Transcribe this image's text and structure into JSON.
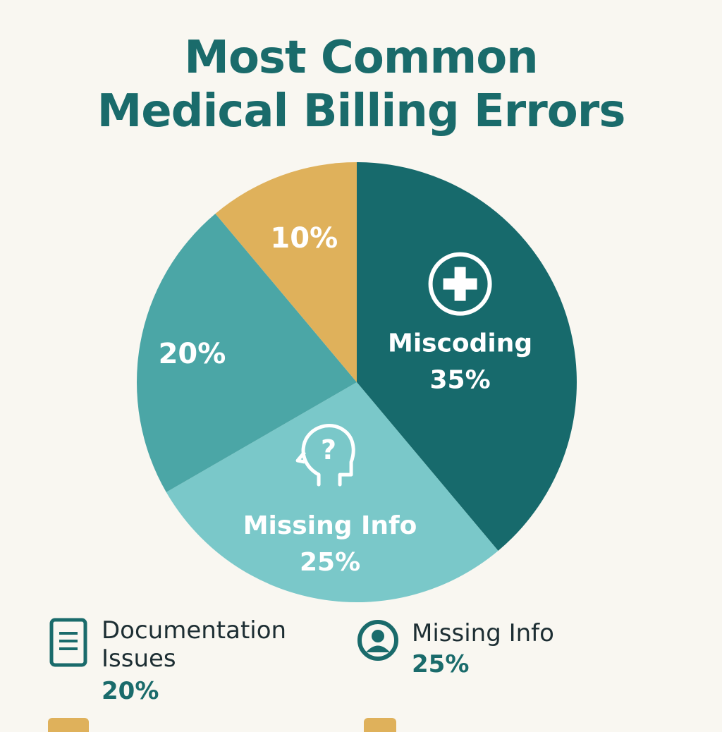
{
  "title_lines": [
    "Most Common",
    "Medical Billing Errors"
  ],
  "colors": {
    "background": "#f9f7f1",
    "title": "#1a6b6b",
    "miscoding": "#176a6c",
    "missing_info": "#7ac8c9",
    "documentation": "#4ba6a6",
    "other": "#dfb15b"
  },
  "chart_data": {
    "type": "pie",
    "title": "Most Common Medical Billing Errors",
    "slices": [
      {
        "label": "Miscoding",
        "value": 35,
        "display": "35%",
        "color": "#176a6c",
        "icon": "medical-cross-icon"
      },
      {
        "label": "Missing Info",
        "value": 25,
        "display": "25%",
        "color": "#7ac8c9",
        "icon": "head-question-icon"
      },
      {
        "label": "",
        "value": 20,
        "display": "20%",
        "color": "#4ba6a6"
      },
      {
        "label": "",
        "value": 10,
        "display": "10%",
        "color": "#dfb15b"
      }
    ]
  },
  "legend": [
    {
      "text_lines": [
        "Documentation",
        "Issues"
      ],
      "value": "20%",
      "icon": "document-icon"
    },
    {
      "text_lines": [
        "Missing Info"
      ],
      "value": "25%",
      "icon": "user-circle-icon"
    }
  ]
}
